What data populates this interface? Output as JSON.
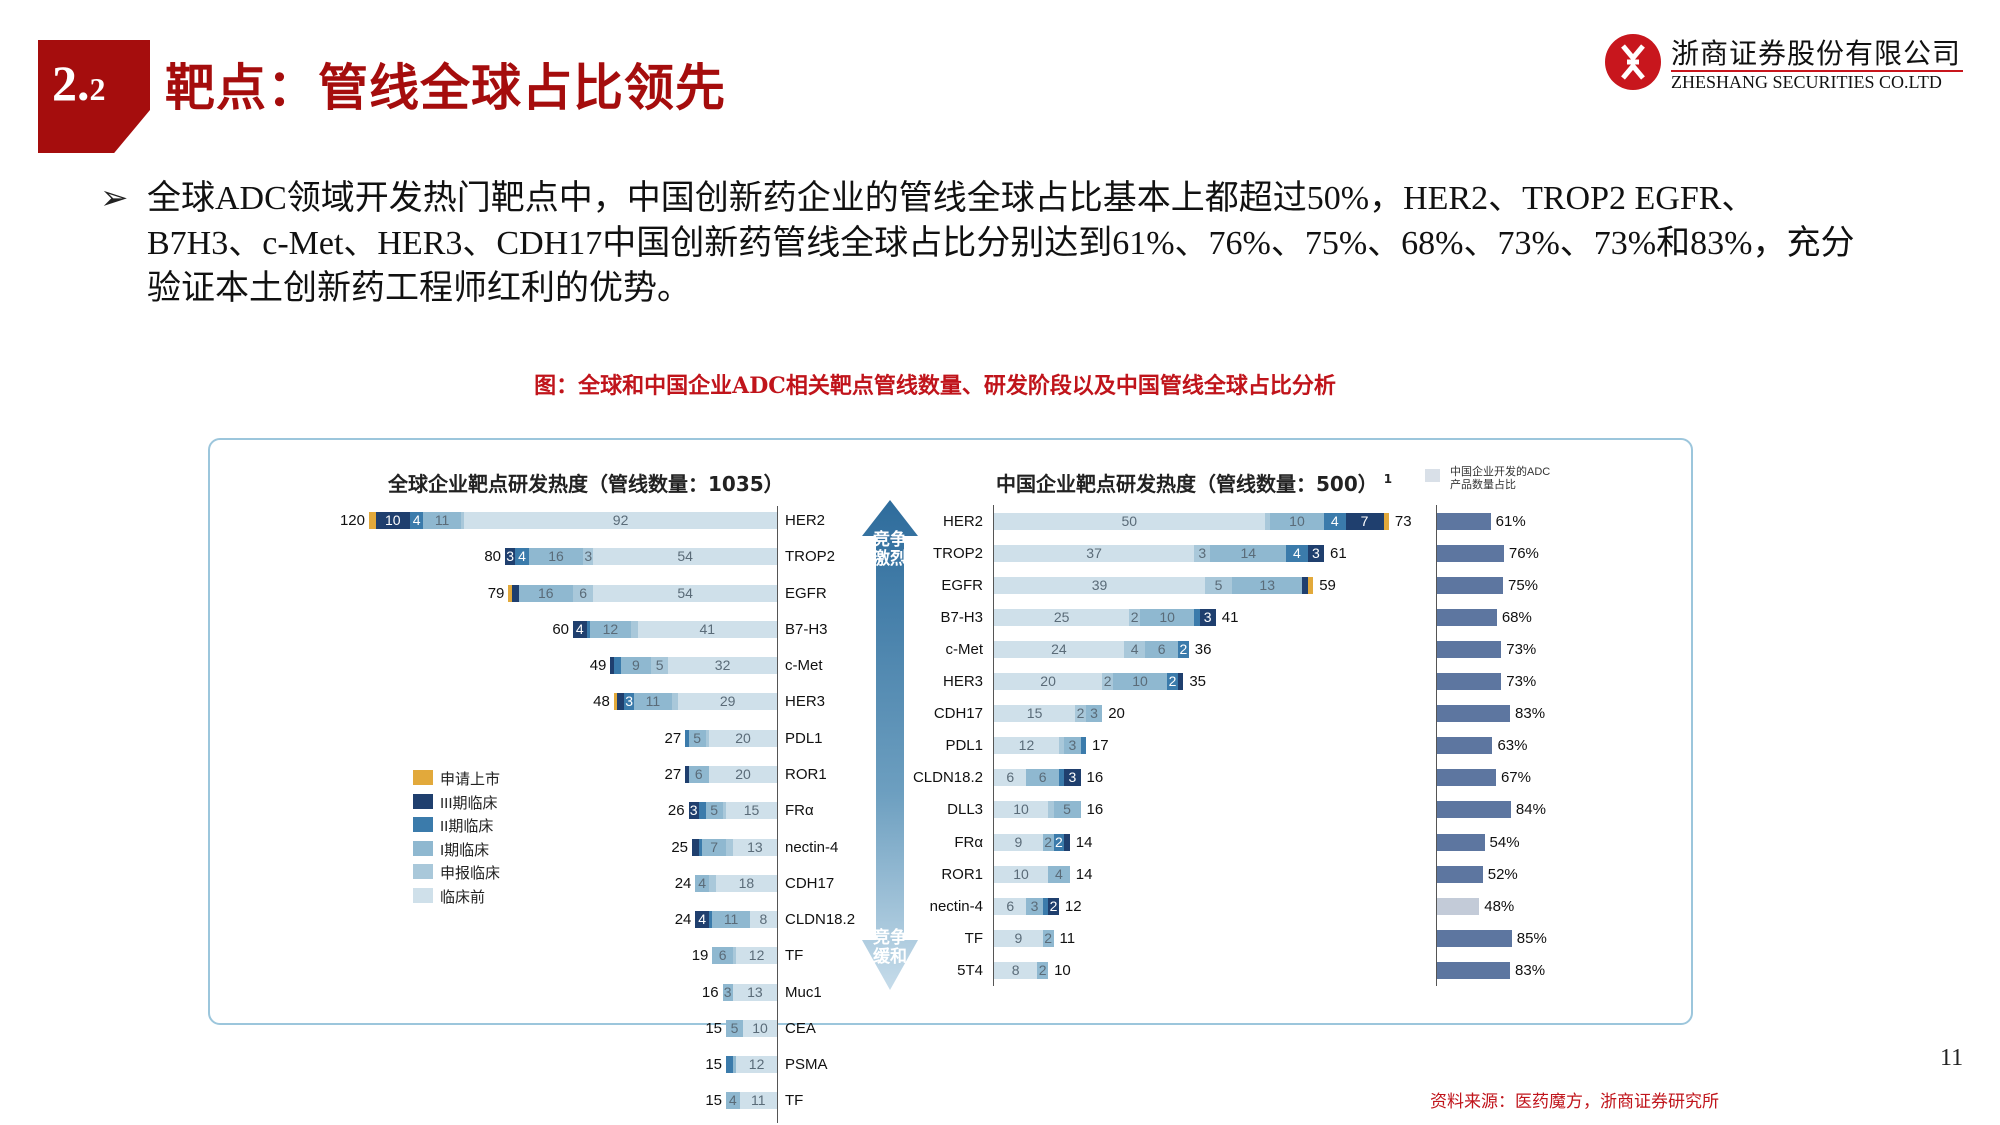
{
  "header": {
    "section_number_main": "2.",
    "section_number_sub": "2",
    "title": "靶点：管线全球占比领先"
  },
  "logo": {
    "name_cn": "浙商证券股份有限公司",
    "name_en": "ZHESHANG SECURITIES CO.LTD"
  },
  "body": {
    "bullet_icon": "arrow-bullet-icon",
    "text": "全球ADC领域开发热门靶点中，中国创新药企业的管线全球占比基本上都超过50%，HER2、TROP2 EGFR、B7H3、c-Met、HER3、CDH17中国创新药管线全球占比分别达到61%、76%、75%、68%、73%、73%和83%，充分验证本土创新药工程师红利的优势。"
  },
  "figure": {
    "caption": "图：全球和中国企业ADC相关靶点管线数量、研发阶段以及中国管线全球占比分析",
    "arrow_top": "竞争激烈",
    "arrow_bottom": "竞争缓和"
  },
  "chart_data": [
    {
      "type": "bar",
      "orientation": "horizontal-stacked",
      "title": "全球企业靶点研发热度（管线数量：1035）",
      "stages": [
        "申请上市",
        "III期临床",
        "II期临床",
        "I期临床",
        "申报临床",
        "临床前"
      ],
      "colors": [
        "#e2a93b",
        "#1f3f6e",
        "#3b7bab",
        "#8fb8d0",
        "#a9c8da",
        "#cfe0ea"
      ],
      "legend": "left",
      "categories": [
        "HER2",
        "TROP2",
        "EGFR",
        "B7-H3",
        "c-Met",
        "HER3",
        "PDL1",
        "ROR1",
        "FRα",
        "nectin-4",
        "CDH17",
        "CLDN18.2",
        "TF",
        "Muc1",
        "CEA",
        "PSMA",
        "TF"
      ],
      "totals": [
        120,
        80,
        79,
        60,
        49,
        48,
        27,
        27,
        26,
        25,
        24,
        24,
        19,
        16,
        15,
        15,
        15
      ],
      "values": [
        [
          2,
          10,
          4,
          11,
          1,
          92
        ],
        [
          0,
          3,
          4,
          16,
          3,
          54
        ],
        [
          1,
          2,
          0,
          16,
          6,
          54
        ],
        [
          0,
          4,
          1,
          12,
          2,
          41
        ],
        [
          0,
          1,
          2,
          9,
          5,
          32
        ],
        [
          1,
          2,
          3,
          11,
          2,
          29
        ],
        [
          0,
          0,
          1,
          5,
          1,
          20
        ],
        [
          0,
          1,
          0,
          6,
          0,
          20
        ],
        [
          0,
          3,
          2,
          5,
          1,
          15
        ],
        [
          0,
          2,
          1,
          7,
          2,
          13
        ],
        [
          0,
          0,
          0,
          4,
          2,
          18
        ],
        [
          0,
          4,
          1,
          11,
          0,
          8
        ],
        [
          0,
          0,
          0,
          6,
          1,
          12
        ],
        [
          0,
          0,
          0,
          3,
          0,
          13
        ],
        [
          0,
          0,
          0,
          5,
          0,
          10
        ],
        [
          0,
          0,
          2,
          1,
          0,
          12
        ],
        [
          0,
          0,
          0,
          4,
          0,
          11
        ]
      ]
    },
    {
      "type": "bar",
      "orientation": "horizontal-stacked",
      "title": "中国企业靶点研发热度（管线数量：500）",
      "title_superscript": "1",
      "stages": [
        "临床前",
        "申报临床",
        "I期临床",
        "II期临床",
        "III期临床",
        "申请上市"
      ],
      "colors": [
        "#cfe0ea",
        "#a9c8da",
        "#8fb8d0",
        "#3b7bab",
        "#1f3f6e",
        "#e2a93b"
      ],
      "categories": [
        "HER2",
        "TROP2",
        "EGFR",
        "B7-H3",
        "c-Met",
        "HER3",
        "CDH17",
        "PDL1",
        "CLDN18.2",
        "DLL3",
        "FRα",
        "ROR1",
        "nectin-4",
        "TF",
        "5T4"
      ],
      "totals": [
        73,
        61,
        59,
        41,
        36,
        35,
        20,
        17,
        16,
        16,
        14,
        14,
        12,
        11,
        10
      ],
      "values": [
        [
          50,
          1,
          10,
          4,
          7,
          1
        ],
        [
          37,
          3,
          14,
          4,
          3,
          0
        ],
        [
          39,
          5,
          13,
          0,
          1,
          1
        ],
        [
          25,
          2,
          10,
          1,
          3,
          0
        ],
        [
          24,
          4,
          6,
          2,
          0,
          0
        ],
        [
          20,
          2,
          10,
          2,
          1,
          0
        ],
        [
          15,
          2,
          3,
          0,
          0,
          0
        ],
        [
          12,
          1,
          3,
          1,
          0,
          0
        ],
        [
          6,
          0,
          6,
          1,
          3,
          0
        ],
        [
          10,
          1,
          5,
          0,
          0,
          0
        ],
        [
          9,
          0,
          2,
          2,
          1,
          0
        ],
        [
          10,
          0,
          4,
          0,
          0,
          0
        ],
        [
          6,
          0,
          3,
          1,
          2,
          0
        ],
        [
          9,
          0,
          2,
          0,
          0,
          0
        ],
        [
          8,
          0,
          2,
          0,
          0,
          0
        ]
      ]
    },
    {
      "type": "bar",
      "orientation": "horizontal",
      "legend_label": "中国企业开发的ADC产品数量占比",
      "legend_line1": "中国企业开发的ADC",
      "legend_line2": "产品数量占比",
      "color": "#5d76a0",
      "highlight_low_color": "#c3cbd8",
      "categories": [
        "HER2",
        "TROP2",
        "EGFR",
        "B7-H3",
        "c-Met",
        "HER3",
        "CDH17",
        "PDL1",
        "CLDN18.2",
        "DLL3",
        "FRα",
        "ROR1",
        "nectin-4",
        "TF",
        "5T4"
      ],
      "values": [
        61,
        76,
        75,
        68,
        73,
        73,
        83,
        63,
        67,
        84,
        54,
        52,
        48,
        85,
        83
      ],
      "labels": [
        "61%",
        "76%",
        "75%",
        "68%",
        "73%",
        "73%",
        "83%",
        "63%",
        "67%",
        "84%",
        "54%",
        "52%",
        "48%",
        "85%",
        "83%"
      ]
    }
  ],
  "footer": {
    "page_number": "11",
    "source": "资料来源：医药魔方，浙商证券研究所"
  }
}
